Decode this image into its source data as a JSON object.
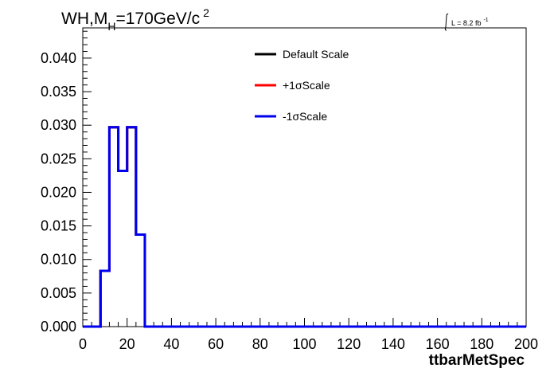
{
  "chart_data": {
    "type": "line",
    "title_main": "WH,M",
    "title_sub": "H",
    "title_rest": "=170GeV/c",
    "title_sup": "2",
    "lumi_prefix": "L = 8.2 fb",
    "lumi_sup": "-1",
    "xlabel": "ttbarMetSpec",
    "ylabel": "",
    "xlim": [
      0,
      200
    ],
    "ylim": [
      0,
      0.0445
    ],
    "x_ticks": [
      0,
      20,
      40,
      60,
      80,
      100,
      120,
      140,
      160,
      180,
      200
    ],
    "x_tick_labels": [
      "0",
      "20",
      "40",
      "60",
      "80",
      "100",
      "120",
      "140",
      "160",
      "180",
      "200"
    ],
    "y_ticks": [
      0,
      0.005,
      0.01,
      0.015,
      0.02,
      0.025,
      0.03,
      0.035,
      0.04
    ],
    "y_tick_labels": [
      "0.000",
      "0.005",
      "0.010",
      "0.015",
      "0.020",
      "0.025",
      "0.030",
      "0.035",
      "0.040"
    ],
    "bin_width": 4,
    "bin_edges_start": 0,
    "legend_position": "top-center",
    "grid": false,
    "series": [
      {
        "name": "Default Scale",
        "color": "#000000",
        "values": [
          0,
          0,
          0.0083,
          0.0297,
          0.0232,
          0.0297,
          0.0137,
          0,
          0,
          0,
          0,
          0,
          0,
          0,
          0,
          0,
          0,
          0,
          0,
          0,
          0,
          0,
          0,
          0,
          0,
          0,
          0,
          0,
          0,
          0,
          0,
          0,
          0,
          0,
          0,
          0,
          0,
          0,
          0,
          0,
          0,
          0,
          0,
          0,
          0,
          0,
          0,
          0,
          0,
          0
        ]
      },
      {
        "name": "+1σScale",
        "color": "#ff0000",
        "values": [
          0,
          0,
          0.0083,
          0.0297,
          0.0232,
          0.0297,
          0.0137,
          0,
          0,
          0,
          0,
          0,
          0,
          0,
          0,
          0,
          0,
          0,
          0,
          0,
          0,
          0,
          0,
          0,
          0,
          0,
          0,
          0,
          0,
          0,
          0,
          0,
          0,
          0,
          0,
          0,
          0,
          0,
          0,
          0,
          0,
          0,
          0,
          0,
          0,
          0,
          0,
          0,
          0,
          0
        ]
      },
      {
        "name": "-1σScale",
        "color": "#0000ee",
        "values": [
          0,
          0,
          0.0083,
          0.0297,
          0.0232,
          0.0297,
          0.0137,
          0,
          0,
          0,
          0,
          0,
          0,
          0,
          0,
          0,
          0,
          0,
          0,
          0,
          0,
          0,
          0,
          0,
          0,
          0,
          0,
          0,
          0,
          0,
          0,
          0,
          0,
          0,
          0,
          0,
          0,
          0,
          0,
          0,
          0,
          0,
          0,
          0,
          0,
          0,
          0,
          0,
          0,
          0
        ]
      }
    ]
  }
}
